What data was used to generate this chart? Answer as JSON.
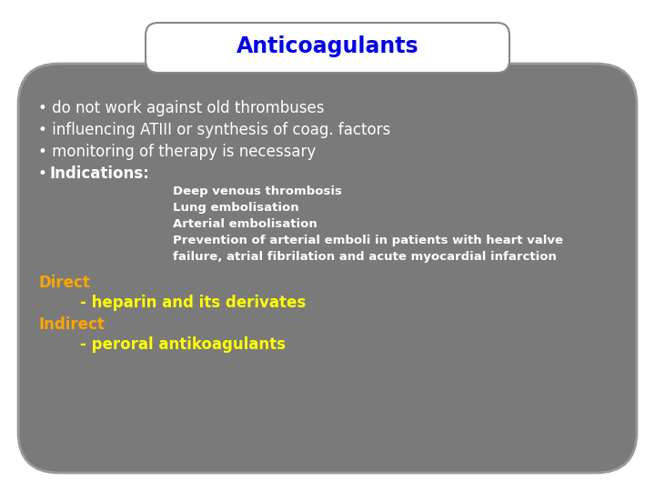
{
  "title": "Anticoagulants",
  "title_color": "#0000ee",
  "title_fontsize": 17,
  "bg_color": "#ffffff",
  "box_color": "#7a7a7a",
  "box_border_color": "#999999",
  "title_box_color": "#ffffff",
  "title_box_border": "#888888",
  "bullet_lines": [
    "• do not work against old thrombuses",
    "• influencing ATIII or synthesis of coag. factors",
    "• monitoring of therapy is necessary"
  ],
  "bullet_fontsize": 12,
  "bullet_color": "#ffffff",
  "indented_lines": [
    "Deep venous thrombosis",
    "Lung embolisation",
    "Arterial embolisation",
    "Prevention of arterial emboli in patients with heart valve",
    "failure, atrial fibrilation and acute myocardial infarction"
  ],
  "indented_fontsize": 9.5,
  "indented_color": "#ffffff",
  "direct_label": "Direct",
  "direct_color": "#ffa500",
  "direct_fontsize": 12,
  "heparin_line": "        - heparin and its derivates",
  "heparin_color": "#ffff00",
  "heparin_fontsize": 12,
  "indirect_label": "Indirect",
  "indirect_color": "#ffa500",
  "indirect_fontsize": 12,
  "peroral_line": "        - peroral antikoagulants",
  "peroral_color": "#ffff00",
  "peroral_fontsize": 12
}
